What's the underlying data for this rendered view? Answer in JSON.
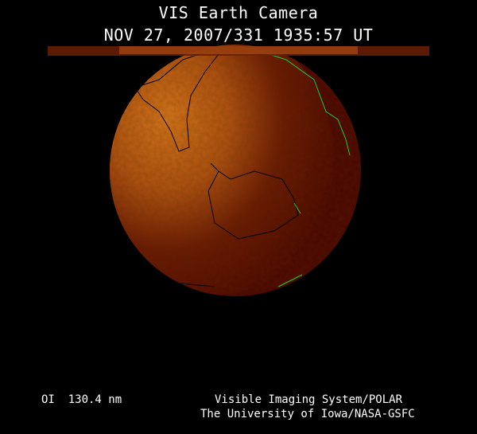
{
  "header": {
    "title": "VIS Earth Camera",
    "timestamp": "NOV 27, 2007/331 1935:57 UT"
  },
  "footer": {
    "wavelength": "OI  130.4 nm",
    "instrument": "Visible Imaging System/POLAR",
    "institution": "The University of Iowa/NASA-GSFC"
  },
  "colors": {
    "background": "#000000",
    "earth_dark": "#4a0800",
    "earth_bright": "#d06a18",
    "coastline_day": "#000000",
    "coastline_night": "#22cc22"
  }
}
